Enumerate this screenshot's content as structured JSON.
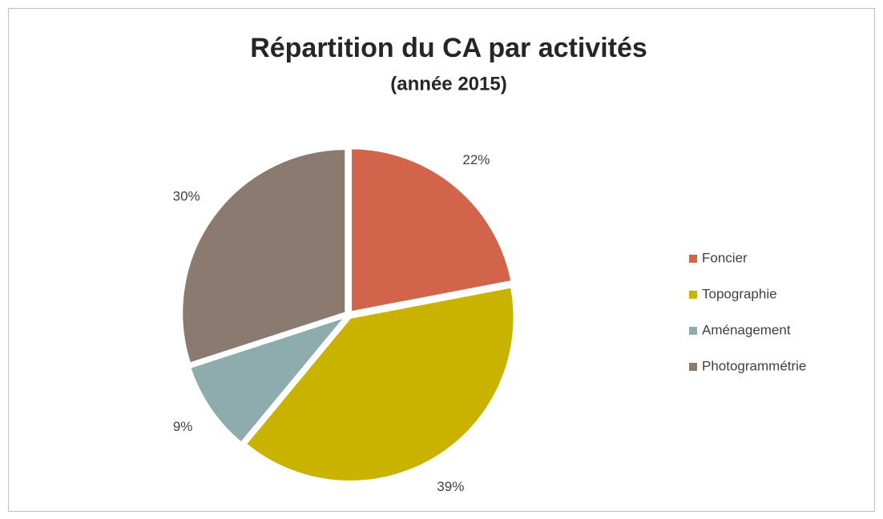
{
  "chart_data": {
    "type": "pie",
    "title": "Répartition du CA par activités",
    "subtitle": "(année 2015)",
    "categories": [
      "Foncier",
      "Topographie",
      "Aménagement",
      "Photogrammétrie"
    ],
    "values": [
      22,
      39,
      9,
      30
    ],
    "value_labels": [
      "22%",
      "39%",
      "9%",
      "30%"
    ],
    "colors": [
      "#d2644a",
      "#c9b300",
      "#8eacae",
      "#8b7a6f"
    ],
    "legend": "right"
  }
}
